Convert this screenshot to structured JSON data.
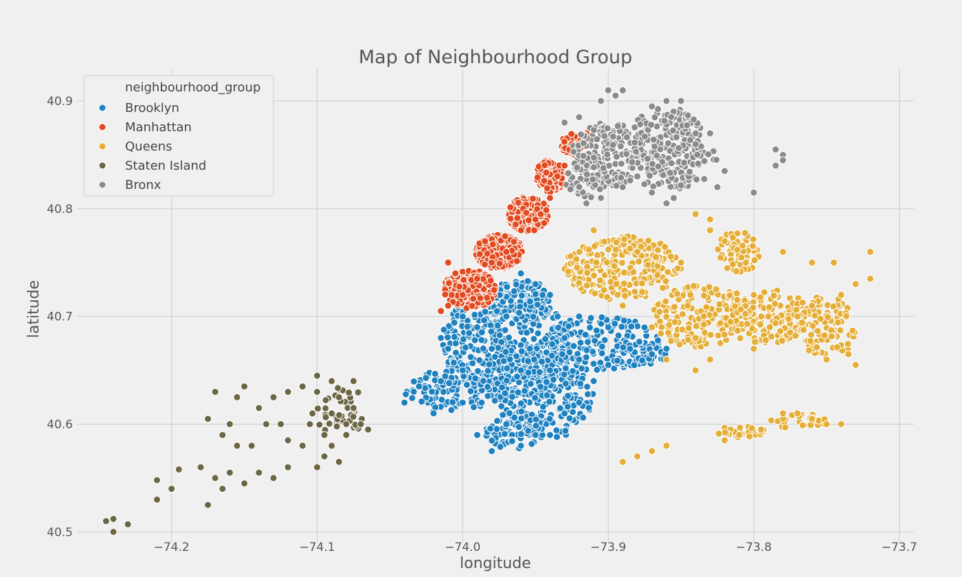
{
  "chart_data": {
    "type": "scatter",
    "title": "Map of Neighbourhood Group",
    "xlabel": "longitude",
    "ylabel": "latitude",
    "xlim": [
      -74.265,
      -73.69
    ],
    "ylim": [
      40.49,
      40.93
    ],
    "xticks": [
      -74.2,
      -74.1,
      -74.0,
      -73.9,
      -73.8,
      -73.7
    ],
    "xtick_labels": [
      "−74.2",
      "−74.1",
      "−74.0",
      "−73.9",
      "−73.8",
      "−73.7"
    ],
    "yticks": [
      40.5,
      40.6,
      40.7,
      40.8,
      40.9
    ],
    "ytick_labels": [
      "40.5",
      "40.6",
      "40.7",
      "40.8",
      "40.9"
    ],
    "grid": true,
    "legend": {
      "title": "neighbourhood_group",
      "placement": "top-left"
    },
    "series": [
      {
        "name": "Brooklyn",
        "color": "#1f82c0",
        "points": [
          [
            -74.04,
            40.62
          ],
          [
            -74.03,
            40.635
          ],
          [
            -74.02,
            40.61
          ],
          [
            -74.015,
            40.64
          ],
          [
            -74.0,
            40.62
          ],
          [
            -73.99,
            40.59
          ],
          [
            -73.98,
            40.575
          ],
          [
            -73.97,
            40.6
          ],
          [
            -73.96,
            40.58
          ],
          [
            -73.95,
            40.59
          ],
          [
            -73.94,
            40.59
          ],
          [
            -73.93,
            40.61
          ],
          [
            -73.92,
            40.62
          ],
          [
            -73.91,
            40.64
          ],
          [
            -73.9,
            40.655
          ],
          [
            -73.885,
            40.67
          ],
          [
            -73.87,
            40.665
          ],
          [
            -73.86,
            40.67
          ],
          [
            -73.95,
            40.73
          ],
          [
            -73.94,
            40.72
          ],
          [
            -73.97,
            40.7
          ],
          [
            -73.99,
            40.69
          ],
          [
            -74.01,
            40.67
          ],
          [
            -74.015,
            40.68
          ],
          [
            -73.96,
            40.74
          ],
          [
            -74.0,
            40.7
          ],
          [
            -73.98,
            40.67
          ],
          [
            -73.96,
            40.65
          ],
          [
            -73.94,
            40.65
          ],
          [
            -73.92,
            40.66
          ],
          [
            -73.9,
            40.69
          ],
          [
            -73.92,
            40.7
          ],
          [
            -73.93,
            40.68
          ],
          [
            -74.0,
            40.65
          ]
        ],
        "clusters": [
          {
            "cx": -73.97,
            "cy": 40.675,
            "rx": 0.045,
            "ry": 0.05,
            "n": 420
          },
          {
            "cx": -73.945,
            "cy": 40.63,
            "rx": 0.035,
            "ry": 0.045,
            "n": 260
          },
          {
            "cx": -73.905,
            "cy": 40.675,
            "rx": 0.04,
            "ry": 0.025,
            "n": 160
          },
          {
            "cx": -74.01,
            "cy": 40.63,
            "rx": 0.03,
            "ry": 0.02,
            "n": 120
          },
          {
            "cx": -73.96,
            "cy": 40.715,
            "rx": 0.02,
            "ry": 0.02,
            "n": 110
          },
          {
            "cx": -73.965,
            "cy": 40.595,
            "rx": 0.02,
            "ry": 0.018,
            "n": 70
          },
          {
            "cx": -73.88,
            "cy": 40.665,
            "rx": 0.02,
            "ry": 0.012,
            "n": 60
          }
        ]
      },
      {
        "name": "Manhattan",
        "color": "#e24a1f",
        "points": [
          [
            -74.015,
            40.705
          ],
          [
            -74.01,
            40.71
          ],
          [
            -74.0,
            40.72
          ],
          [
            -73.99,
            40.735
          ],
          [
            -73.98,
            40.75
          ],
          [
            -73.97,
            40.76
          ],
          [
            -73.96,
            40.78
          ],
          [
            -73.95,
            40.79
          ],
          [
            -73.94,
            40.81
          ],
          [
            -73.935,
            40.83
          ],
          [
            -73.93,
            40.84
          ],
          [
            -73.925,
            40.86
          ],
          [
            -73.915,
            40.87
          ],
          [
            -74.01,
            40.75
          ],
          [
            -74.005,
            40.74
          ]
        ],
        "clusters": [
          {
            "cx": -73.995,
            "cy": 40.725,
            "rx": 0.018,
            "ry": 0.018,
            "n": 320
          },
          {
            "cx": -73.975,
            "cy": 40.76,
            "rx": 0.016,
            "ry": 0.016,
            "n": 300
          },
          {
            "cx": -73.955,
            "cy": 40.795,
            "rx": 0.014,
            "ry": 0.016,
            "n": 240
          },
          {
            "cx": -73.94,
            "cy": 40.83,
            "rx": 0.01,
            "ry": 0.015,
            "n": 130
          },
          {
            "cx": -73.925,
            "cy": 40.86,
            "rx": 0.007,
            "ry": 0.01,
            "n": 60
          }
        ]
      },
      {
        "name": "Queens",
        "color": "#e5ae38",
        "points": [
          [
            -73.91,
            40.78
          ],
          [
            -73.88,
            40.76
          ],
          [
            -73.85,
            40.75
          ],
          [
            -73.83,
            40.78
          ],
          [
            -73.82,
            40.77
          ],
          [
            -73.8,
            40.72
          ],
          [
            -73.79,
            40.7
          ],
          [
            -73.76,
            40.71
          ],
          [
            -73.74,
            40.72
          ],
          [
            -73.73,
            40.73
          ],
          [
            -73.72,
            40.735
          ],
          [
            -73.735,
            40.665
          ],
          [
            -73.73,
            40.655
          ],
          [
            -73.75,
            40.66
          ],
          [
            -73.77,
            40.7
          ],
          [
            -73.8,
            40.67
          ],
          [
            -73.84,
            40.68
          ],
          [
            -73.86,
            40.66
          ],
          [
            -73.87,
            40.69
          ],
          [
            -73.89,
            40.71
          ],
          [
            -73.76,
            40.75
          ],
          [
            -73.78,
            40.76
          ],
          [
            -73.745,
            40.75
          ],
          [
            -73.72,
            40.76
          ],
          [
            -73.83,
            40.79
          ],
          [
            -73.84,
            40.795
          ],
          [
            -73.78,
            40.61
          ],
          [
            -73.77,
            40.61
          ],
          [
            -73.76,
            40.605
          ],
          [
            -73.75,
            40.6
          ],
          [
            -73.74,
            40.6
          ],
          [
            -73.795,
            40.595
          ],
          [
            -73.81,
            40.59
          ],
          [
            -73.82,
            40.585
          ],
          [
            -73.86,
            40.58
          ],
          [
            -73.87,
            40.575
          ],
          [
            -73.88,
            40.57
          ],
          [
            -73.89,
            40.565
          ],
          [
            -73.84,
            40.65
          ],
          [
            -73.83,
            40.66
          ]
        ],
        "clusters": [
          {
            "cx": -73.89,
            "cy": 40.745,
            "rx": 0.04,
            "ry": 0.03,
            "n": 260
          },
          {
            "cx": -73.835,
            "cy": 40.7,
            "rx": 0.035,
            "ry": 0.03,
            "n": 180
          },
          {
            "cx": -73.79,
            "cy": 40.7,
            "rx": 0.03,
            "ry": 0.025,
            "n": 140
          },
          {
            "cx": -73.75,
            "cy": 40.69,
            "rx": 0.02,
            "ry": 0.03,
            "n": 90
          },
          {
            "cx": -73.81,
            "cy": 40.76,
            "rx": 0.015,
            "ry": 0.02,
            "n": 70
          },
          {
            "cx": -73.77,
            "cy": 40.603,
            "rx": 0.02,
            "ry": 0.007,
            "n": 30
          },
          {
            "cx": -73.805,
            "cy": 40.593,
            "rx": 0.02,
            "ry": 0.006,
            "n": 25
          }
        ]
      },
      {
        "name": "Staten Island",
        "color": "#6d6646",
        "points": [
          [
            -74.245,
            40.51
          ],
          [
            -74.24,
            40.5
          ],
          [
            -74.24,
            40.512
          ],
          [
            -74.23,
            40.507
          ],
          [
            -74.21,
            40.53
          ],
          [
            -74.21,
            40.548
          ],
          [
            -74.2,
            40.54
          ],
          [
            -74.195,
            40.558
          ],
          [
            -74.18,
            40.56
          ],
          [
            -74.175,
            40.525
          ],
          [
            -74.17,
            40.55
          ],
          [
            -74.165,
            40.54
          ],
          [
            -74.16,
            40.555
          ],
          [
            -74.15,
            40.545
          ],
          [
            -74.14,
            40.555
          ],
          [
            -74.13,
            40.55
          ],
          [
            -74.12,
            40.56
          ],
          [
            -74.11,
            40.58
          ],
          [
            -74.1,
            40.56
          ],
          [
            -74.095,
            40.57
          ],
          [
            -74.09,
            40.58
          ],
          [
            -74.08,
            40.59
          ],
          [
            -74.07,
            40.6
          ],
          [
            -74.065,
            40.595
          ],
          [
            -74.075,
            40.615
          ],
          [
            -74.085,
            40.625
          ],
          [
            -74.09,
            40.64
          ],
          [
            -74.1,
            40.63
          ],
          [
            -74.11,
            40.635
          ],
          [
            -74.12,
            40.63
          ],
          [
            -74.13,
            40.625
          ],
          [
            -74.14,
            40.615
          ],
          [
            -74.15,
            40.635
          ],
          [
            -74.155,
            40.625
          ],
          [
            -74.16,
            40.6
          ],
          [
            -74.165,
            40.59
          ],
          [
            -74.17,
            40.63
          ],
          [
            -74.175,
            40.605
          ],
          [
            -74.155,
            40.58
          ],
          [
            -74.135,
            40.6
          ],
          [
            -74.125,
            40.6
          ],
          [
            -74.105,
            40.6
          ],
          [
            -74.09,
            40.61
          ],
          [
            -74.08,
            40.6
          ],
          [
            -74.1,
            40.645
          ],
          [
            -74.075,
            40.64
          ],
          [
            -74.145,
            40.58
          ],
          [
            -74.12,
            40.585
          ],
          [
            -74.085,
            40.565
          ],
          [
            -74.095,
            40.59
          ]
        ],
        "clusters": [
          {
            "cx": -74.085,
            "cy": 40.615,
            "rx": 0.02,
            "ry": 0.02,
            "n": 30
          },
          {
            "cx": -74.085,
            "cy": 40.6,
            "rx": 0.015,
            "ry": 0.01,
            "n": 15
          }
        ]
      },
      {
        "name": "Bronx",
        "color": "#8b8b8b",
        "points": [
          [
            -73.89,
            40.91
          ],
          [
            -73.895,
            40.905
          ],
          [
            -73.9,
            40.91
          ],
          [
            -73.905,
            40.9
          ],
          [
            -73.92,
            40.885
          ],
          [
            -73.93,
            40.88
          ],
          [
            -73.84,
            40.87
          ],
          [
            -73.83,
            40.87
          ],
          [
            -73.84,
            40.86
          ],
          [
            -73.82,
            40.835
          ],
          [
            -73.825,
            40.82
          ],
          [
            -73.8,
            40.815
          ],
          [
            -73.785,
            40.855
          ],
          [
            -73.78,
            40.85
          ],
          [
            -73.78,
            40.845
          ],
          [
            -73.785,
            40.84
          ],
          [
            -73.855,
            40.81
          ],
          [
            -73.86,
            40.805
          ],
          [
            -73.87,
            40.815
          ],
          [
            -73.915,
            40.805
          ],
          [
            -73.905,
            40.81
          ],
          [
            -73.89,
            40.82
          ],
          [
            -73.88,
            40.83
          ],
          [
            -73.86,
            40.9
          ],
          [
            -73.85,
            40.9
          ],
          [
            -73.87,
            40.895
          ]
        ],
        "clusters": [
          {
            "cx": -73.9,
            "cy": 40.85,
            "rx": 0.025,
            "ry": 0.03,
            "n": 180
          },
          {
            "cx": -73.86,
            "cy": 40.865,
            "rx": 0.025,
            "ry": 0.03,
            "n": 160
          },
          {
            "cx": -73.915,
            "cy": 40.83,
            "rx": 0.015,
            "ry": 0.02,
            "n": 60
          },
          {
            "cx": -73.86,
            "cy": 40.83,
            "rx": 0.02,
            "ry": 0.015,
            "n": 50
          },
          {
            "cx": -73.84,
            "cy": 40.845,
            "rx": 0.015,
            "ry": 0.02,
            "n": 40
          }
        ]
      }
    ]
  }
}
